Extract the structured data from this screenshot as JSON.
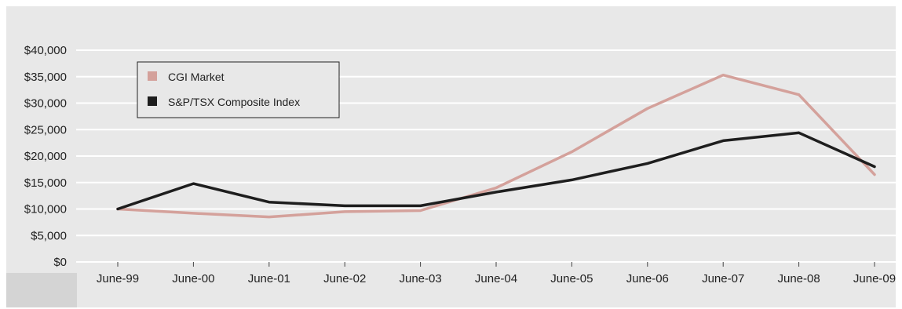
{
  "chart_data": {
    "type": "line",
    "title": "",
    "xlabel": "",
    "ylabel": "",
    "categories": [
      "June-99",
      "June-00",
      "June-01",
      "June-02",
      "June-03",
      "June-04",
      "June-05",
      "June-06",
      "June-07",
      "June-08",
      "June-09"
    ],
    "y_ticks": [
      "$0",
      "$5,000",
      "$10,000",
      "$15,000",
      "$20,000",
      "$25,000",
      "$30,000",
      "$35,000",
      "$40,000"
    ],
    "ylim": [
      0,
      40000
    ],
    "grid": true,
    "legend_position": "top-left",
    "series": [
      {
        "name": "CGI Market",
        "color": "#d4a19b",
        "values": [
          10000,
          9200,
          8500,
          9500,
          9700,
          14000,
          20800,
          29000,
          35300,
          31600,
          16500
        ]
      },
      {
        "name": "S&P/TSX Composite Index",
        "color": "#1e1e1e",
        "values": [
          10000,
          14800,
          11300,
          10600,
          10600,
          13200,
          15500,
          18600,
          22900,
          24400,
          18000
        ]
      }
    ],
    "colors": {
      "plot_bg": "#e8e8e8",
      "band_bg": "#d4d4d4",
      "grid": "#ffffff"
    }
  }
}
